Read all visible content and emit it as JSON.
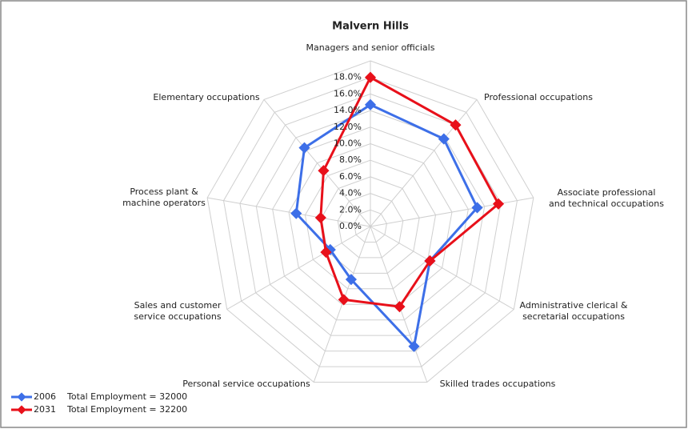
{
  "chart_data": {
    "type": "radar",
    "title": "Malvern Hills",
    "categories": [
      "Managers and senior officials",
      "Professional occupations",
      "Associate professional and technical occupations",
      "Administrative clerical & secretarial occupations",
      "Skilled trades occupations",
      "Personal service occupations",
      "Sales and customer service occupations",
      "Process plant & machine operators",
      "Elementary occupations"
    ],
    "series": [
      {
        "name": "2006",
        "label": "Total Employment = 32000",
        "color": "#3d6fe8",
        "values": [
          14.7,
          13.8,
          13.1,
          8.3,
          15.4,
          6.8,
          5.6,
          9.1,
          12.4
        ]
      },
      {
        "name": "2031",
        "label": "Total Employment = 32200",
        "color": "#e8101a",
        "values": [
          18.0,
          16.0,
          15.7,
          8.3,
          10.3,
          9.4,
          6.2,
          6.1,
          8.8
        ]
      }
    ],
    "ylim": [
      0,
      20
    ],
    "yticks": [
      {
        "value": 0,
        "label": "0.0%"
      },
      {
        "value": 2,
        "label": "2.0%"
      },
      {
        "value": 4,
        "label": "4.0%"
      },
      {
        "value": 6,
        "label": "6.0%"
      },
      {
        "value": 8,
        "label": "8.0%"
      },
      {
        "value": 10,
        "label": "10.0%"
      },
      {
        "value": 12,
        "label": "12.0%"
      },
      {
        "value": 14,
        "label": "14.0%"
      },
      {
        "value": 16,
        "label": "16.0%"
      },
      {
        "value": 18,
        "label": "18.0%"
      }
    ],
    "grid": true
  }
}
